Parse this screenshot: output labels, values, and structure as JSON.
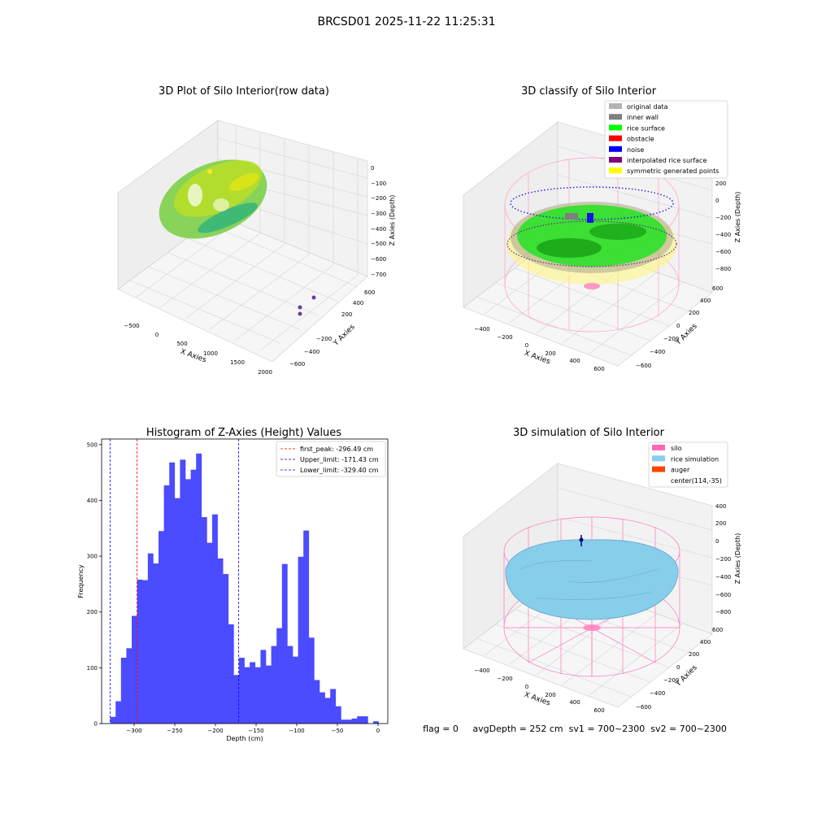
{
  "suptitle": "BRCSD01 2025-11-22 11:25:31",
  "raw_plot": {
    "title": "3D Plot of Silo Interior(row data)",
    "xlabel": "X Axies",
    "ylabel": "Y Axies",
    "zlabel": "Z Axies (Depth)",
    "xticks": [
      "−500",
      "0",
      "500",
      "1000",
      "1500",
      "2000"
    ],
    "yticks": [
      "600",
      "400",
      "200",
      "−200",
      "−400",
      "−600"
    ],
    "zticks": [
      "0",
      "−100",
      "−200",
      "−300",
      "−400",
      "−500",
      "−600",
      "−700"
    ]
  },
  "classify_plot": {
    "title": "3D classify of Silo Interior",
    "xlabel": "X Axies",
    "ylabel": "Y Axies",
    "zlabel": "Z Axies (Depth)",
    "xticks": [
      "−400",
      "−200",
      "0",
      "200",
      "400",
      "600"
    ],
    "yticks": [
      "600",
      "400",
      "200",
      "0",
      "−200",
      "−400",
      "−600"
    ],
    "zticks": [
      "200",
      "0",
      "−200",
      "−400",
      "−600",
      "−800"
    ],
    "legend": [
      {
        "label": "original data",
        "color": "#b3b3b3"
      },
      {
        "label": "inner wall",
        "color": "#808080"
      },
      {
        "label": "rice surface",
        "color": "#00ff00"
      },
      {
        "label": "obstacle",
        "color": "#ff0000"
      },
      {
        "label": "noise",
        "color": "#0000ff"
      },
      {
        "label": "interpolated rice surface",
        "color": "#800080"
      },
      {
        "label": "symmetric generated points",
        "color": "#ffff00"
      }
    ]
  },
  "histogram": {
    "title": "Histogram of Z-Axies (Height) Values",
    "xlabel": "Depth (cm)",
    "ylabel": "Frequency",
    "xticks": [
      "−300",
      "−250",
      "−200",
      "−150",
      "−100",
      "−50",
      "0"
    ],
    "yticks": [
      "0",
      "100",
      "200",
      "300",
      "400",
      "500"
    ],
    "legend": [
      {
        "label": "first_peak: -296.49 cm",
        "color": "#ff0000"
      },
      {
        "label": "Upper_limit: -171.43 cm",
        "color": "#0000ff"
      },
      {
        "label": "Lower_limit: -329.40 cm",
        "color": "#0000ff"
      }
    ]
  },
  "sim_plot": {
    "title": "3D simulation of Silo Interior",
    "xlabel": "X Axies",
    "ylabel": "Y Axies",
    "zlabel": "Z Axies (Depth)",
    "xticks": [
      "−400",
      "−200",
      "0",
      "200",
      "400",
      "600"
    ],
    "yticks": [
      "600",
      "400",
      "200",
      "0",
      "−200",
      "−400",
      "−600"
    ],
    "zticks": [
      "400",
      "200",
      "0",
      "−200",
      "−400",
      "−600",
      "−800"
    ],
    "legend": [
      {
        "label": "silo",
        "color": "#ff69b4"
      },
      {
        "label": "rice simulation",
        "color": "#87ceeb"
      },
      {
        "label": "auger",
        "color": "#ff4500"
      },
      {
        "label": "center(114,-35)",
        "color": ""
      }
    ]
  },
  "status_line": "flag = 0     avgDepth = 252 cm  sv1 = 700~2300  sv2 = 700~2300",
  "chart_data": {
    "type": "bar",
    "title": "Histogram of Z-Axies (Height) Values",
    "xlabel": "Depth (cm)",
    "ylabel": "Frequency",
    "xlim": [
      -340,
      12
    ],
    "ylim": [
      0,
      510
    ],
    "bin_start": -329.4,
    "bin_width": 6.6,
    "values": [
      12,
      40,
      118,
      135,
      193,
      258,
      257,
      305,
      287,
      345,
      427,
      468,
      404,
      473,
      438,
      455,
      484,
      370,
      324,
      375,
      296,
      268,
      178,
      87,
      118,
      101,
      110,
      101,
      132,
      104,
      139,
      171,
      286,
      139,
      120,
      299,
      346,
      154,
      78,
      56,
      46,
      62,
      31,
      7,
      7,
      9,
      13,
      13,
      0,
      4
    ],
    "vlines": [
      {
        "x": -296.49,
        "color": "#ff0000"
      },
      {
        "x": -171.43,
        "color": "#0000ff"
      },
      {
        "x": -329.4,
        "color": "#0000ff"
      }
    ]
  }
}
